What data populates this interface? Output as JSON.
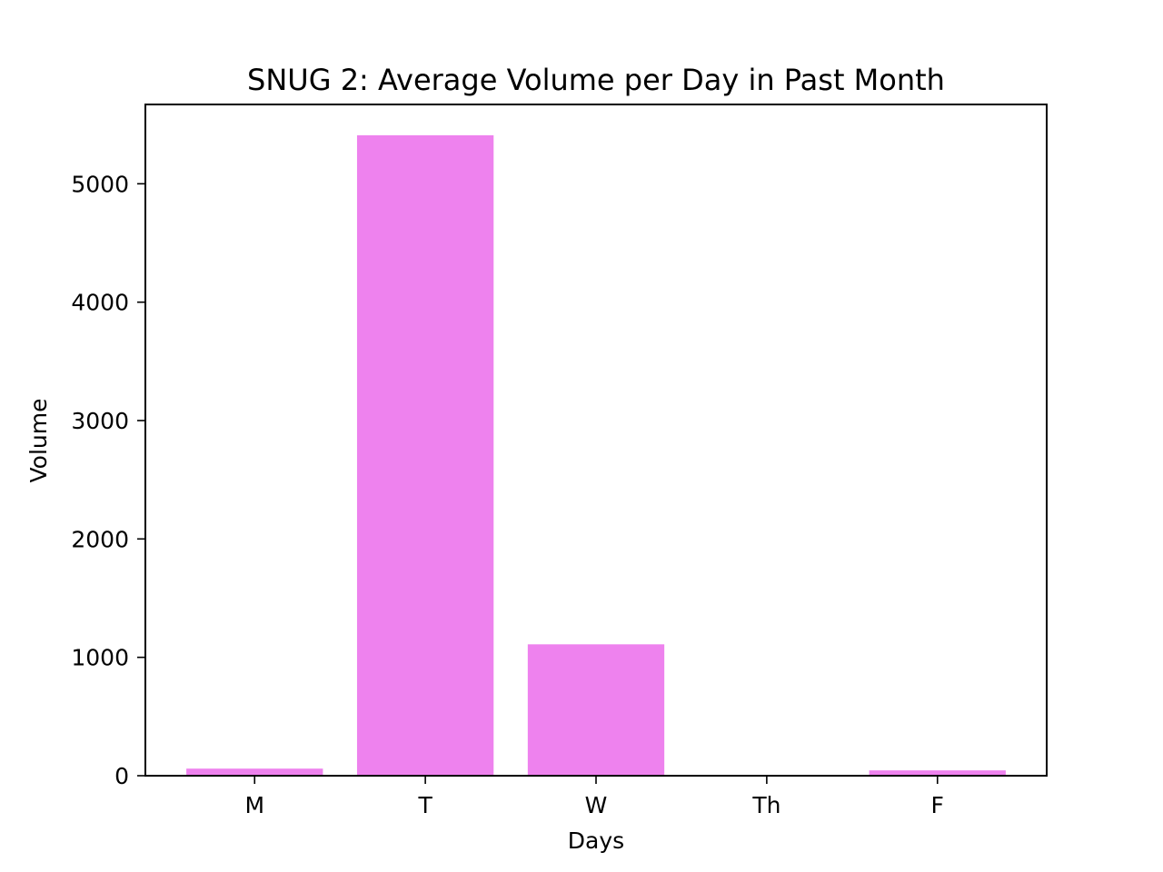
{
  "chart_data": {
    "type": "bar",
    "title": "SNUG 2: Average Volume per Day in Past Month",
    "xlabel": "Days",
    "ylabel": "Volume",
    "categories": [
      "M",
      "T",
      "W",
      "Th",
      "F"
    ],
    "values": [
      60,
      5410,
      1110,
      0,
      45
    ],
    "ylim": [
      0,
      5670
    ],
    "yticks": [
      0,
      1000,
      2000,
      3000,
      4000,
      5000
    ],
    "ytick_labels": [
      "0",
      "1000",
      "2000",
      "3000",
      "4000",
      "5000"
    ],
    "bar_color": "#ee82ee",
    "grid": false,
    "legend": "none"
  }
}
